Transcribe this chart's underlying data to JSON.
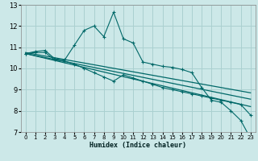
{
  "xlabel": "Humidex (Indice chaleur)",
  "ylabel": "",
  "background_color": "#cce8e8",
  "grid_color": "#aad0d0",
  "line_color": "#006868",
  "xlim": [
    -0.5,
    23.5
  ],
  "ylim": [
    7,
    13
  ],
  "xticks": [
    0,
    1,
    2,
    3,
    4,
    5,
    6,
    7,
    8,
    9,
    10,
    11,
    12,
    13,
    14,
    15,
    16,
    17,
    18,
    19,
    20,
    21,
    22,
    23
  ],
  "yticks": [
    7,
    8,
    9,
    10,
    11,
    12,
    13
  ],
  "series": [
    {
      "x": [
        0,
        1,
        2,
        3,
        4,
        5,
        6,
        7,
        8,
        9,
        10,
        11,
        12,
        13,
        14,
        15,
        16,
        17,
        18,
        19,
        20,
        21,
        22,
        23
      ],
      "y": [
        10.7,
        10.8,
        10.85,
        10.45,
        10.4,
        11.1,
        11.8,
        12.0,
        11.5,
        12.65,
        11.4,
        11.2,
        10.3,
        10.2,
        10.1,
        10.05,
        9.95,
        9.8,
        9.1,
        8.5,
        8.4,
        8.0,
        7.55,
        6.7
      ],
      "style": "line+marker"
    },
    {
      "x": [
        0,
        23
      ],
      "y": [
        10.75,
        8.85
      ],
      "style": "line"
    },
    {
      "x": [
        0,
        23
      ],
      "y": [
        10.7,
        8.55
      ],
      "style": "line"
    },
    {
      "x": [
        0,
        23
      ],
      "y": [
        10.7,
        8.2
      ],
      "style": "line"
    },
    {
      "x": [
        0,
        1,
        2,
        3,
        4,
        5,
        6,
        7,
        8,
        9,
        10,
        11,
        12,
        13,
        14,
        15,
        16,
        17,
        18,
        19,
        20,
        21,
        22,
        23
      ],
      "y": [
        10.7,
        10.75,
        10.75,
        10.4,
        10.35,
        10.2,
        10.0,
        9.8,
        9.6,
        9.4,
        9.7,
        9.55,
        9.4,
        9.25,
        9.1,
        9.0,
        8.9,
        8.8,
        8.7,
        8.6,
        8.5,
        8.4,
        8.3,
        7.8
      ],
      "style": "line+marker"
    }
  ]
}
